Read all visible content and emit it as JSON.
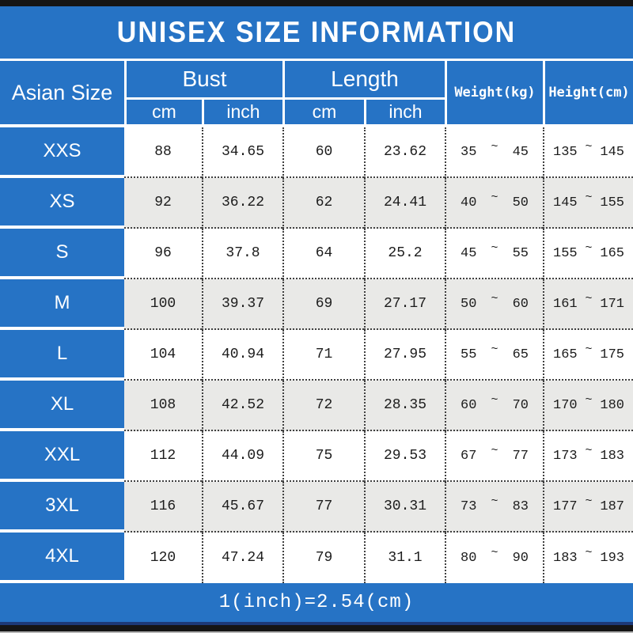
{
  "title": "UNISEX SIZE INFORMATION",
  "footer_note": "1(inch)=2.54(cm)",
  "colors": {
    "blue": "#2673c5",
    "row_alt_gray": "#e9e9e7",
    "text_dark": "#1c1c1c",
    "white": "#ffffff",
    "bar_black": "#151515",
    "footer_edge_navy": "#1d3a78"
  },
  "table": {
    "header": {
      "size_col": "Asian Size",
      "bust": "Bust",
      "length": "Length",
      "weight": "Weight(kg)",
      "height": "Height(cm)",
      "sub_units": [
        "cm",
        "inch",
        "cm",
        "inch"
      ],
      "tilde": "~"
    }
  },
  "chart_data": {
    "type": "table",
    "title": "UNISEX SIZE INFORMATION",
    "column_groups": [
      {
        "label": "Bust",
        "span": 2
      },
      {
        "label": "Length",
        "span": 2
      }
    ],
    "columns": [
      "Asian Size",
      "Bust cm",
      "Bust inch",
      "Length cm",
      "Length inch",
      "Weight(kg) min",
      "Weight(kg) max",
      "Height(cm) min",
      "Height(cm) max"
    ],
    "rows": [
      [
        "XXS",
        "88",
        "34.65",
        "60",
        "23.62",
        "35",
        "45",
        "135",
        "145"
      ],
      [
        "XS",
        "92",
        "36.22",
        "62",
        "24.41",
        "40",
        "50",
        "145",
        "155"
      ],
      [
        "S",
        "96",
        "37.8",
        "64",
        "25.2",
        "45",
        "55",
        "155",
        "165"
      ],
      [
        "M",
        "100",
        "39.37",
        "69",
        "27.17",
        "50",
        "60",
        "161",
        "171"
      ],
      [
        "L",
        "104",
        "40.94",
        "71",
        "27.95",
        "55",
        "65",
        "165",
        "175"
      ],
      [
        "XL",
        "108",
        "42.52",
        "72",
        "28.35",
        "60",
        "70",
        "170",
        "180"
      ],
      [
        "XXL",
        "112",
        "44.09",
        "75",
        "29.53",
        "67",
        "77",
        "173",
        "183"
      ],
      [
        "3XL",
        "116",
        "45.67",
        "77",
        "30.31",
        "73",
        "83",
        "177",
        "187"
      ],
      [
        "4XL",
        "120",
        "47.24",
        "79",
        "31.1",
        "80",
        "90",
        "183",
        "193"
      ]
    ],
    "footnote": "1(inch)=2.54(cm)"
  }
}
